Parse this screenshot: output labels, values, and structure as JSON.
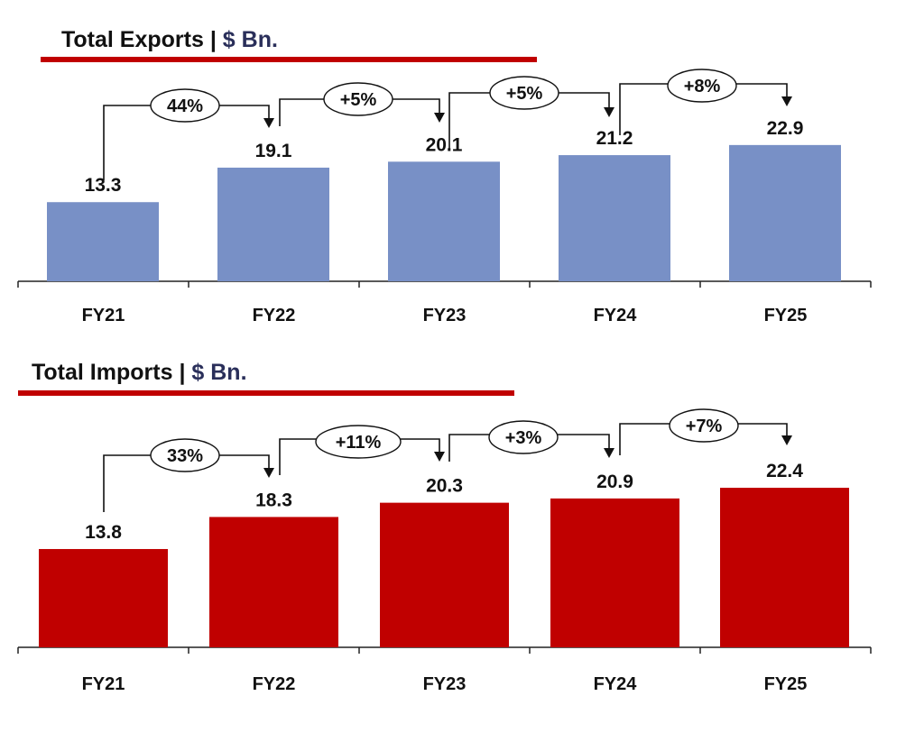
{
  "chart_data": [
    {
      "type": "bar",
      "title": "Total Exports",
      "title_separator": "|",
      "unit": "$ Bn.",
      "categories": [
        "FY21",
        "FY22",
        "FY23",
        "FY24",
        "FY25"
      ],
      "values": [
        13.3,
        19.1,
        20.1,
        21.2,
        22.9
      ],
      "growth_labels": [
        "44%",
        "+5%",
        "+5%",
        "+8%"
      ],
      "bar_color": "#7890c6",
      "accent_line_color": "#c00000",
      "unit_color": "#2a2f5a",
      "xlabel": "",
      "ylabel": "",
      "ylim": [
        0,
        24
      ],
      "grid": false
    },
    {
      "type": "bar",
      "title": "Total Imports",
      "title_separator": "|",
      "unit": "$ Bn.",
      "categories": [
        "FY21",
        "FY22",
        "FY23",
        "FY24",
        "FY25"
      ],
      "values": [
        13.8,
        18.3,
        20.3,
        20.9,
        22.4
      ],
      "growth_labels": [
        "33%",
        "+11%",
        "+3%",
        "+7%"
      ],
      "bar_color": "#c00000",
      "accent_line_color": "#c00000",
      "unit_color": "#2a2f5a",
      "xlabel": "",
      "ylabel": "",
      "ylim": [
        0,
        24
      ],
      "grid": false
    }
  ]
}
